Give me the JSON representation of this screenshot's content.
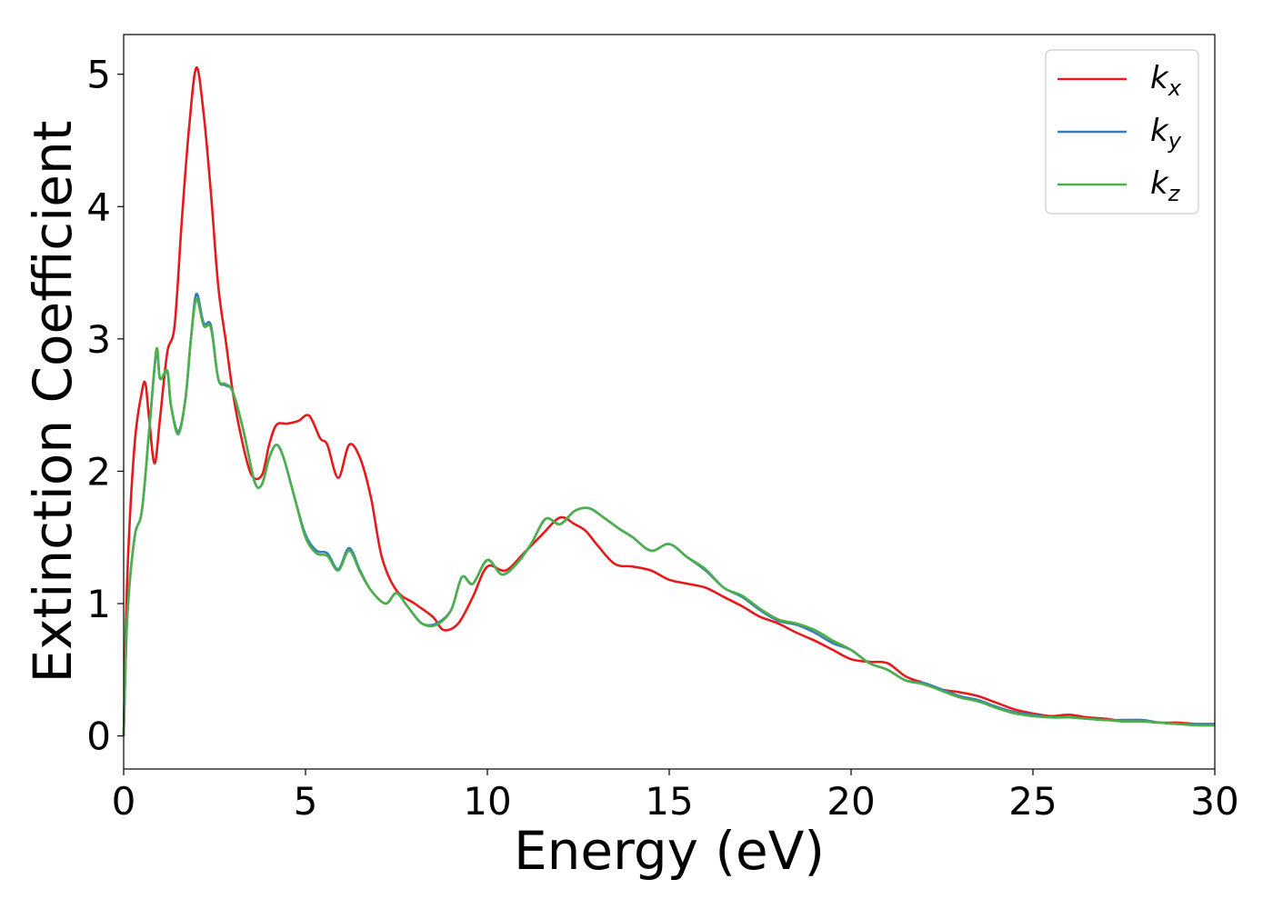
{
  "chart_data": {
    "type": "line",
    "xlabel": "Energy (eV)",
    "ylabel": "Extinction Coefficient",
    "xlim": [
      0,
      30
    ],
    "ylim": [
      -0.25,
      5.3
    ],
    "xticks": [
      0,
      5,
      10,
      15,
      20,
      25,
      30
    ],
    "yticks": [
      0,
      1,
      2,
      3,
      4,
      5
    ],
    "grid": false,
    "legend_position": "top-right",
    "series": [
      {
        "name": "k_x",
        "name_base": "k",
        "name_sub": "x",
        "color": "#e41a1c",
        "x": [
          0,
          0.1,
          0.3,
          0.5,
          0.6,
          0.7,
          0.85,
          1.0,
          1.2,
          1.4,
          1.6,
          1.8,
          2.0,
          2.2,
          2.4,
          2.6,
          2.8,
          3.0,
          3.2,
          3.5,
          3.8,
          4.0,
          4.2,
          4.5,
          4.8,
          5.1,
          5.4,
          5.6,
          5.9,
          6.2,
          6.5,
          6.8,
          7.1,
          7.5,
          8.0,
          8.5,
          8.8,
          9.2,
          9.6,
          10.0,
          10.5,
          11.0,
          11.5,
          12.0,
          12.4,
          12.7,
          13.0,
          13.5,
          14.0,
          14.5,
          15.0,
          15.5,
          16.0,
          16.5,
          17.0,
          17.5,
          18.0,
          18.5,
          19.0,
          19.5,
          20.0,
          20.5,
          21.0,
          21.5,
          22.0,
          22.5,
          23.0,
          23.5,
          24.0,
          24.5,
          25.0,
          25.5,
          26.0,
          26.5,
          27.0,
          27.5,
          28.0,
          28.5,
          29.0,
          29.5,
          30.0
        ],
        "y": [
          0.0,
          1.2,
          2.2,
          2.6,
          2.66,
          2.4,
          2.06,
          2.4,
          2.9,
          3.1,
          3.9,
          4.6,
          5.05,
          4.7,
          4.1,
          3.4,
          3.0,
          2.6,
          2.3,
          1.98,
          1.97,
          2.2,
          2.35,
          2.36,
          2.38,
          2.42,
          2.25,
          2.2,
          1.95,
          2.2,
          2.1,
          1.8,
          1.35,
          1.1,
          1.0,
          0.9,
          0.8,
          0.85,
          1.05,
          1.28,
          1.25,
          1.38,
          1.52,
          1.65,
          1.6,
          1.55,
          1.45,
          1.3,
          1.28,
          1.25,
          1.18,
          1.15,
          1.12,
          1.05,
          0.98,
          0.9,
          0.85,
          0.78,
          0.72,
          0.65,
          0.58,
          0.56,
          0.55,
          0.45,
          0.4,
          0.35,
          0.33,
          0.3,
          0.25,
          0.2,
          0.17,
          0.15,
          0.16,
          0.14,
          0.13,
          0.11,
          0.11,
          0.1,
          0.1,
          0.09,
          0.09
        ]
      },
      {
        "name": "k_y",
        "name_base": "k",
        "name_sub": "y",
        "color": "#377eb8",
        "x": [
          0,
          0.1,
          0.3,
          0.5,
          0.7,
          0.9,
          1.0,
          1.2,
          1.3,
          1.5,
          1.7,
          1.85,
          2.0,
          2.2,
          2.4,
          2.6,
          2.8,
          3.0,
          3.3,
          3.6,
          3.8,
          4.0,
          4.2,
          4.4,
          4.7,
          5.0,
          5.3,
          5.6,
          5.9,
          6.2,
          6.5,
          6.8,
          7.2,
          7.5,
          7.8,
          8.2,
          8.6,
          9.0,
          9.3,
          9.6,
          10.0,
          10.4,
          10.8,
          11.2,
          11.6,
          12.0,
          12.4,
          12.8,
          13.2,
          13.6,
          14.0,
          14.5,
          15.0,
          15.5,
          16.0,
          16.5,
          17.0,
          17.5,
          18.0,
          18.5,
          19.0,
          19.5,
          20.0,
          20.5,
          21.0,
          21.5,
          22.0,
          22.5,
          23.0,
          23.5,
          24.0,
          24.5,
          25.0,
          25.5,
          26.0,
          26.5,
          27.0,
          27.5,
          28.0,
          28.5,
          29.0,
          29.5,
          30.0
        ],
        "y": [
          0.0,
          0.9,
          1.5,
          1.7,
          2.3,
          2.9,
          2.7,
          2.75,
          2.5,
          2.3,
          2.55,
          3.0,
          3.34,
          3.12,
          3.1,
          2.7,
          2.65,
          2.6,
          2.3,
          1.92,
          1.9,
          2.1,
          2.2,
          2.1,
          1.8,
          1.52,
          1.4,
          1.38,
          1.26,
          1.42,
          1.25,
          1.1,
          1.0,
          1.08,
          0.98,
          0.85,
          0.85,
          0.95,
          1.2,
          1.15,
          1.33,
          1.22,
          1.3,
          1.45,
          1.64,
          1.6,
          1.7,
          1.72,
          1.65,
          1.57,
          1.5,
          1.4,
          1.45,
          1.35,
          1.25,
          1.12,
          1.05,
          0.95,
          0.87,
          0.84,
          0.78,
          0.7,
          0.65,
          0.55,
          0.5,
          0.42,
          0.4,
          0.35,
          0.3,
          0.27,
          0.22,
          0.18,
          0.16,
          0.14,
          0.14,
          0.13,
          0.12,
          0.12,
          0.12,
          0.1,
          0.09,
          0.09,
          0.09
        ]
      },
      {
        "name": "k_z",
        "name_base": "k",
        "name_sub": "z",
        "color": "#4daf4a",
        "x": [
          0,
          0.1,
          0.3,
          0.5,
          0.7,
          0.9,
          1.0,
          1.2,
          1.3,
          1.5,
          1.7,
          1.85,
          2.0,
          2.2,
          2.4,
          2.6,
          2.8,
          3.0,
          3.3,
          3.6,
          3.8,
          4.0,
          4.2,
          4.4,
          4.7,
          5.0,
          5.3,
          5.6,
          5.9,
          6.2,
          6.5,
          6.8,
          7.2,
          7.5,
          7.8,
          8.2,
          8.6,
          9.0,
          9.3,
          9.6,
          10.0,
          10.4,
          10.8,
          11.2,
          11.6,
          12.0,
          12.4,
          12.8,
          13.2,
          13.6,
          14.0,
          14.5,
          15.0,
          15.5,
          16.0,
          16.5,
          17.0,
          17.5,
          18.0,
          18.5,
          19.0,
          19.5,
          20.0,
          20.5,
          21.0,
          21.5,
          22.0,
          22.5,
          23.0,
          23.5,
          24.0,
          24.5,
          25.0,
          25.5,
          26.0,
          26.5,
          27.0,
          27.5,
          28.0,
          28.5,
          29.0,
          29.5,
          30.0
        ],
        "y": [
          0.0,
          0.9,
          1.5,
          1.7,
          2.3,
          2.92,
          2.7,
          2.76,
          2.5,
          2.28,
          2.55,
          3.0,
          3.3,
          3.1,
          3.08,
          2.7,
          2.66,
          2.6,
          2.3,
          1.92,
          1.9,
          2.1,
          2.2,
          2.1,
          1.8,
          1.5,
          1.38,
          1.36,
          1.25,
          1.4,
          1.24,
          1.1,
          1.0,
          1.08,
          0.98,
          0.85,
          0.84,
          0.95,
          1.2,
          1.15,
          1.33,
          1.22,
          1.3,
          1.45,
          1.64,
          1.6,
          1.7,
          1.72,
          1.65,
          1.57,
          1.5,
          1.4,
          1.45,
          1.35,
          1.26,
          1.12,
          1.06,
          0.96,
          0.88,
          0.85,
          0.8,
          0.72,
          0.65,
          0.55,
          0.5,
          0.42,
          0.39,
          0.34,
          0.29,
          0.26,
          0.21,
          0.17,
          0.15,
          0.14,
          0.14,
          0.13,
          0.12,
          0.11,
          0.11,
          0.1,
          0.09,
          0.08,
          0.08
        ]
      }
    ]
  }
}
